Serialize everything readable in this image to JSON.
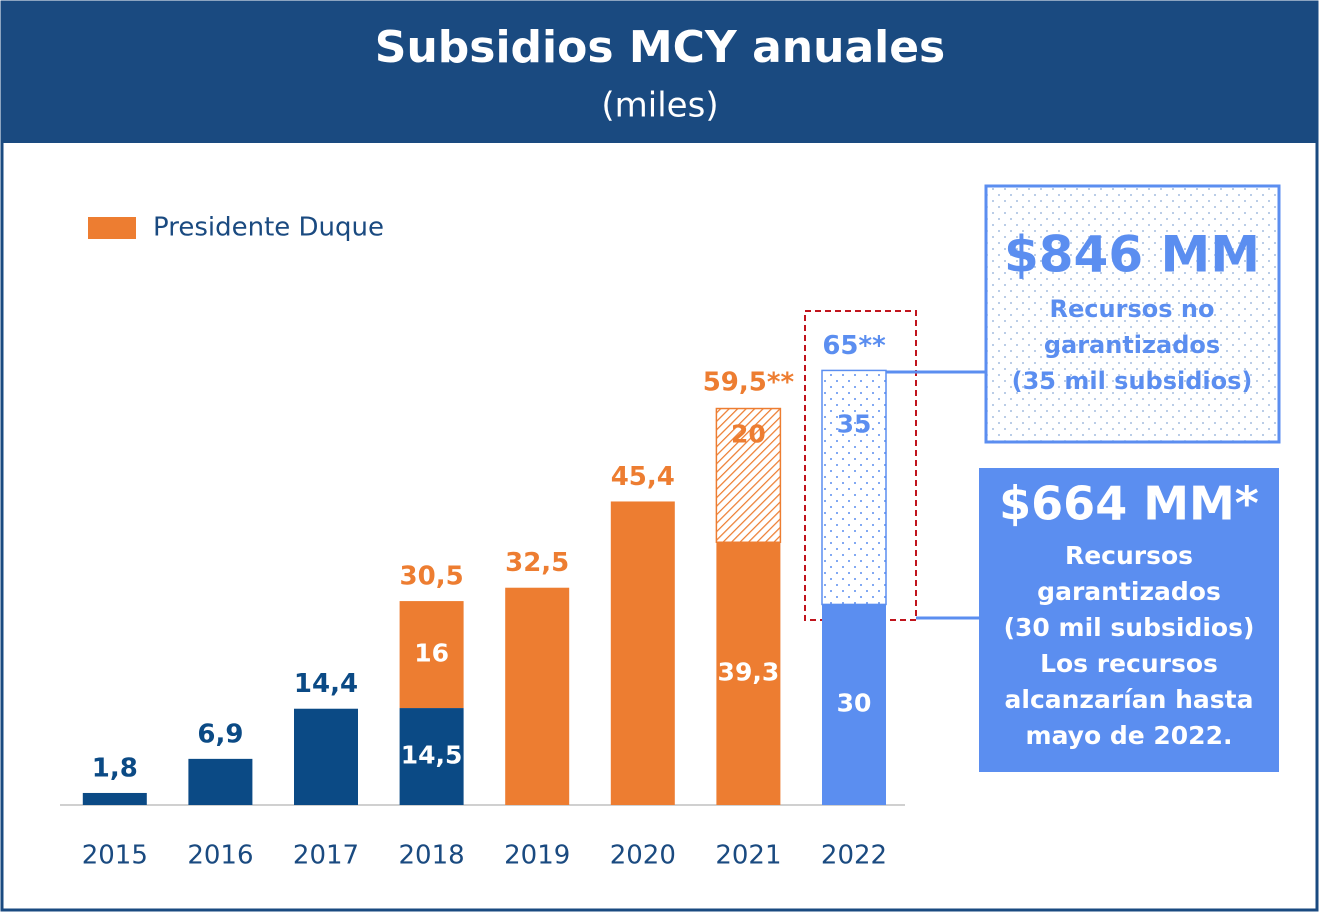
{
  "chart_data": {
    "type": "stacked_bar",
    "title": "Subsidios MCY anuales",
    "subtitle": "(miles)",
    "categories": [
      "2015",
      "2016",
      "2017",
      "2018",
      "2019",
      "2020",
      "2021",
      "2022"
    ],
    "series": [
      {
        "color": "#0b4a85",
        "label_color": "#ffffff",
        "values": [
          1.8,
          6.9,
          14.4,
          14.5,
          null,
          null,
          null,
          null
        ],
        "value_labels": [
          null,
          null,
          null,
          "14,5",
          null,
          null,
          null,
          null
        ]
      },
      {
        "name": "Presidente Duque",
        "color": "#ed7d31",
        "label_color": "#ffffff",
        "values": [
          null,
          null,
          null,
          16,
          32.5,
          45.4,
          39.3,
          null
        ],
        "value_labels": [
          null,
          null,
          null,
          "16",
          null,
          null,
          "39,3",
          null
        ]
      },
      {
        "color": "#ed7d31",
        "pattern": "hatch",
        "label_color": "#ed7d31",
        "values": [
          null,
          null,
          null,
          null,
          null,
          null,
          20,
          null
        ],
        "value_labels": [
          null,
          null,
          null,
          null,
          null,
          null,
          "20",
          null
        ]
      },
      {
        "color": "#5b8ef0",
        "label_color": "#ffffff",
        "values": [
          null,
          null,
          null,
          null,
          null,
          null,
          null,
          30
        ],
        "value_labels": [
          null,
          null,
          null,
          null,
          null,
          null,
          null,
          "30"
        ]
      },
      {
        "color": "#5b8ef0",
        "pattern": "dots",
        "label_color": "#5b8ef0",
        "values": [
          null,
          null,
          null,
          null,
          null,
          null,
          null,
          35
        ],
        "value_labels": [
          null,
          null,
          null,
          null,
          null,
          null,
          null,
          "35"
        ]
      }
    ],
    "totals": [
      1.8,
      6.9,
      14.4,
      30.5,
      32.5,
      45.4,
      59.5,
      65
    ],
    "total_labels": [
      "1,8",
      "6,9",
      "14,4",
      "30,5",
      "32,5",
      "45,4",
      "59,5**",
      "65**"
    ],
    "total_colors": [
      "#0b4a85",
      "#0b4a85",
      "#0b4a85",
      "#ed7d31",
      "#ed7d31",
      "#ed7d31",
      "#ed7d31",
      "#5b8ef0"
    ],
    "ylim": [
      0,
      70
    ],
    "callouts": [
      {
        "title": "$846 MM",
        "lines": [
          "Recursos no",
          "garantizados",
          "(35 mil subsidios)"
        ]
      },
      {
        "title": "$664 MM*",
        "lines": [
          "Recursos",
          "garantizados",
          "(30 mil subsidios)",
          "Los recursos",
          "alcanzarían hasta",
          "mayo de 2022."
        ]
      }
    ]
  }
}
